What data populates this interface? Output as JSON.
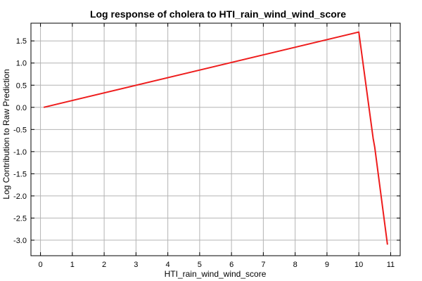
{
  "chart_data": {
    "type": "line",
    "title": "Log response of cholera to HTI_rain_wind_wind_score",
    "xlabel": "HTI_rain_wind_wind_score",
    "ylabel": "Log Contribution to Raw Prediction",
    "xlim": [
      -0.3,
      11.3
    ],
    "ylim": [
      -3.35,
      1.9
    ],
    "x_ticks": [
      0,
      1,
      2,
      3,
      4,
      5,
      6,
      7,
      8,
      9,
      10,
      11
    ],
    "y_ticks": [
      1.5,
      1.0,
      0.5,
      0.0,
      -0.5,
      -1.0,
      -1.5,
      -2.0,
      -2.5,
      -3.0
    ],
    "x_tick_labels": [
      "0",
      "1",
      "2",
      "3",
      "4",
      "5",
      "6",
      "7",
      "8",
      "9",
      "10",
      "11"
    ],
    "y_tick_labels": [
      "1.5",
      "1.0",
      "0.5",
      "0.0",
      "-0.5",
      "-1.0",
      "-1.5",
      "-2.0",
      "-2.5",
      "-3.0"
    ],
    "grid": true,
    "series_color": "#ee1c1c",
    "series": [
      {
        "x": [
          0.1,
          10.0,
          10.45,
          10.5,
          10.9
        ],
        "y": [
          0.0,
          1.7,
          -0.7,
          -0.9,
          -3.1
        ]
      }
    ]
  }
}
